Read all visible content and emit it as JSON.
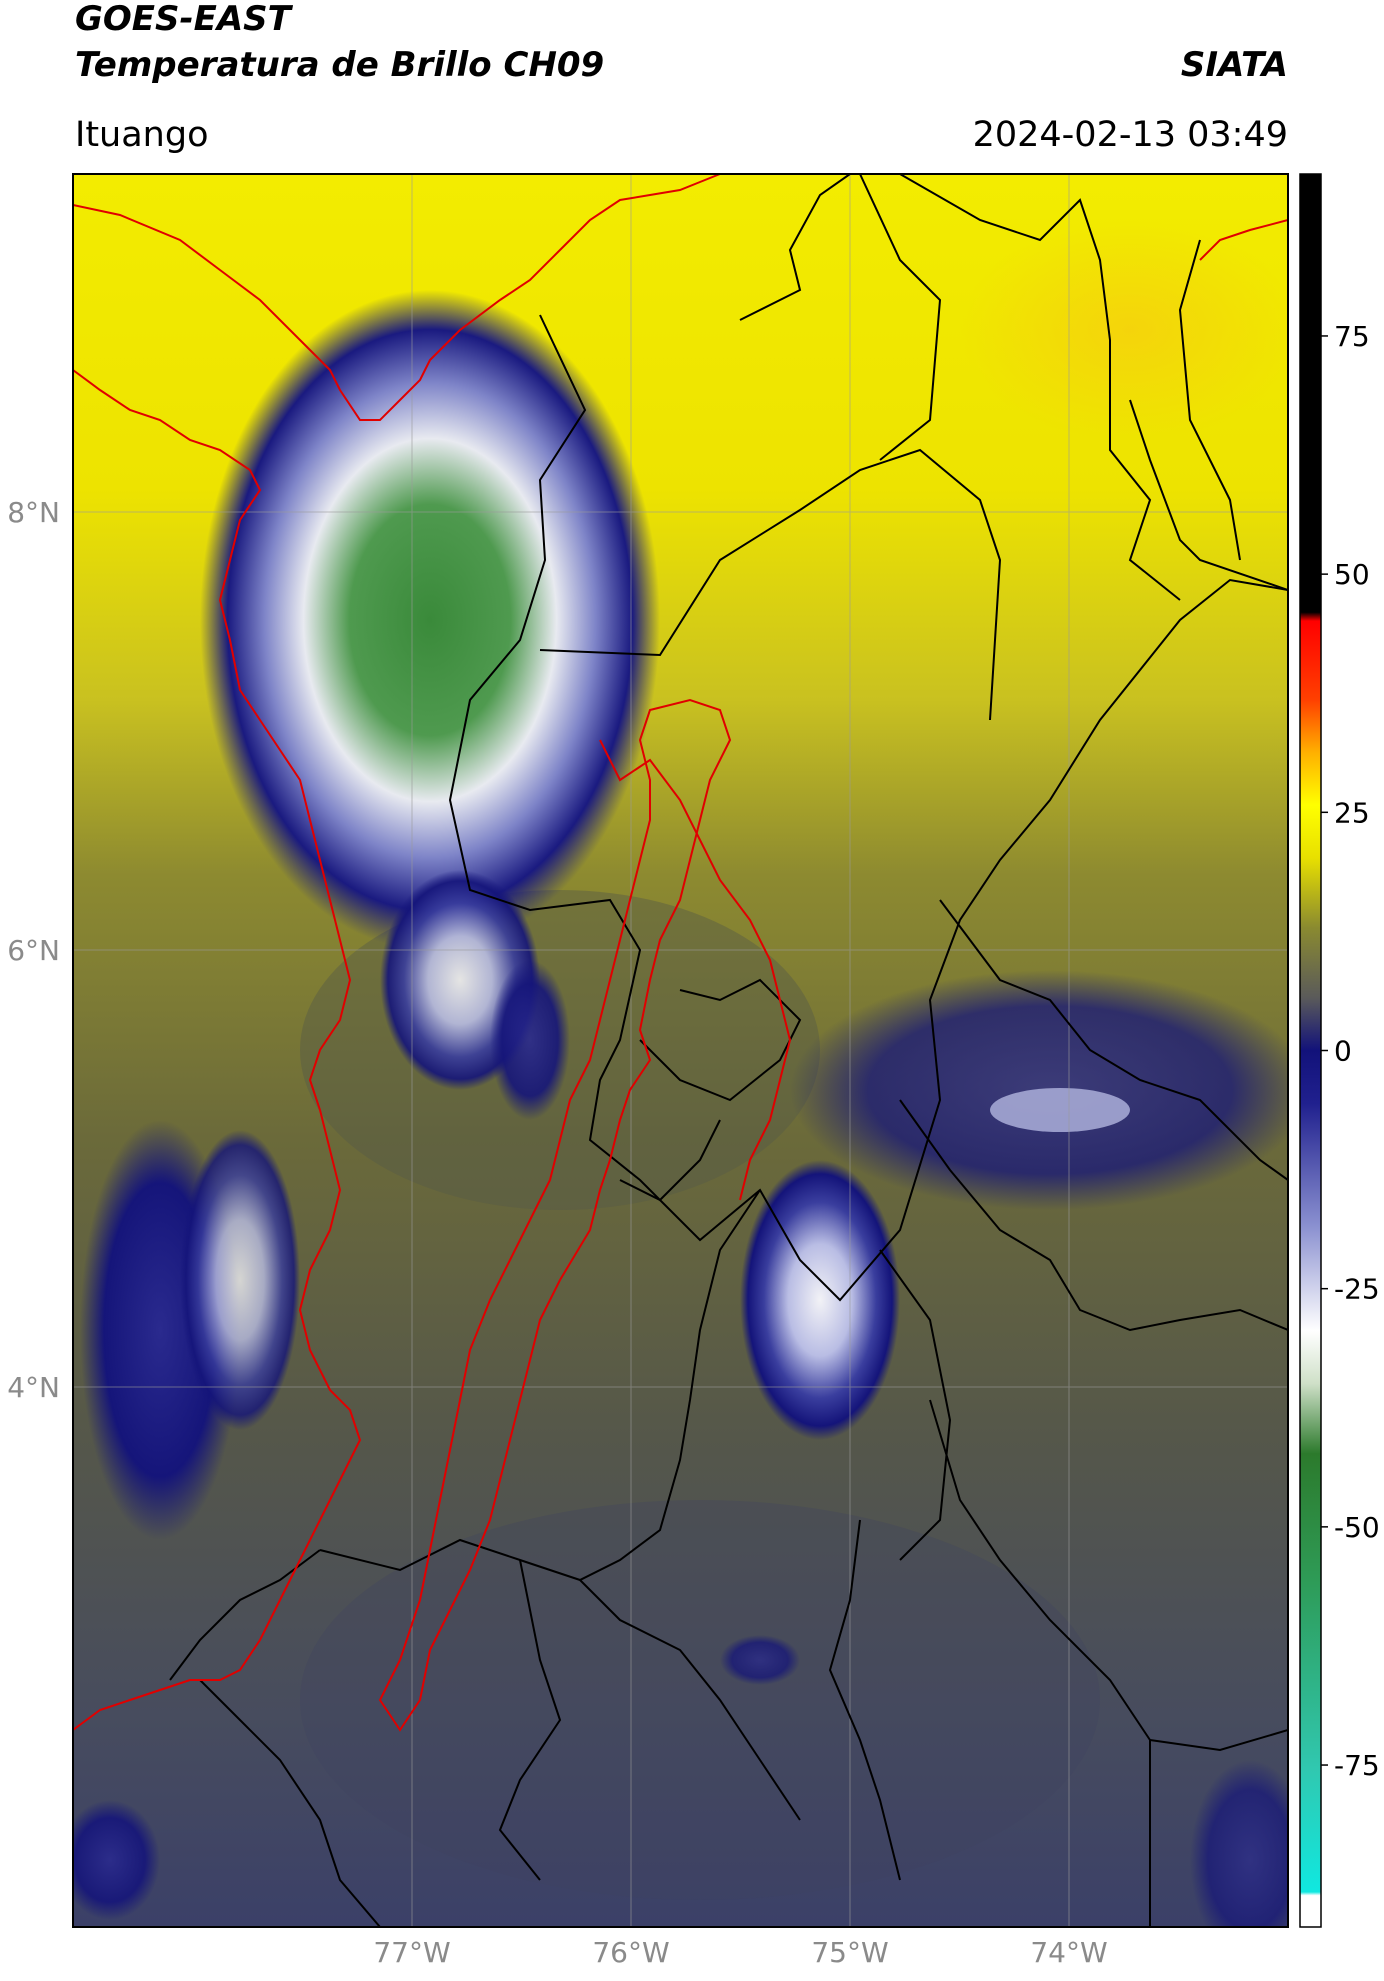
{
  "header": {
    "satellite": "GOES-EAST",
    "product": "Temperatura de Brillo CH09",
    "organization": "SIATA",
    "location": "Ituango",
    "datetime": "2024-02-13 03:49"
  },
  "map": {
    "lat_labels": [
      "8°N",
      "6°N",
      "4°N"
    ],
    "lon_labels": [
      "77°W",
      "76°W",
      "75°W",
      "74°W"
    ],
    "colors": {
      "warm_yellow": "#f0e800",
      "olive": "#6f6f3a",
      "gray_blue": "#4a4f60",
      "deep_blue": "#13137a",
      "boundary_red": "#e00000",
      "boundary_black": "#000000"
    }
  },
  "colorbar": {
    "labels": [
      "75",
      "50",
      "25",
      "0",
      "-25",
      "-50",
      "-75"
    ],
    "values": [
      75,
      50,
      25,
      0,
      -25,
      -50,
      -75
    ],
    "range": [
      -92,
      92
    ]
  }
}
